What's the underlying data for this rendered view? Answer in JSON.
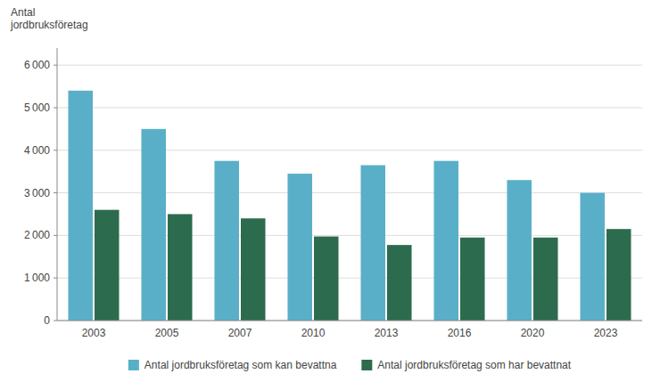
{
  "chart_data": {
    "type": "bar",
    "ylabel": "Antal\njordbruksföretag",
    "categories": [
      "2003",
      "2005",
      "2007",
      "2010",
      "2013",
      "2016",
      "2020",
      "2023"
    ],
    "series": [
      {
        "name": "Antal jordbruksföretag som kan bevattna",
        "color": "#5aafc8",
        "values": [
          5400,
          4500,
          3750,
          3450,
          3650,
          3750,
          3300,
          3000
        ]
      },
      {
        "name": "Antal jordbruksföretag som har bevattnat",
        "color": "#2d6b4e",
        "values": [
          2600,
          2500,
          2400,
          1975,
          1775,
          1950,
          1950,
          2150
        ]
      }
    ],
    "ylim": [
      0,
      6400
    ],
    "yticks": [
      0,
      {
        "value": 1000,
        "label": "1 000"
      },
      {
        "value": 2000,
        "label": "2 000"
      },
      {
        "value": 3000,
        "label": "3 000"
      },
      {
        "value": 4000,
        "label": "4 000"
      },
      {
        "value": 5000,
        "label": "5 000"
      },
      {
        "value": 6000,
        "label": "6 000"
      }
    ],
    "grid": true,
    "legend": "bottom"
  }
}
